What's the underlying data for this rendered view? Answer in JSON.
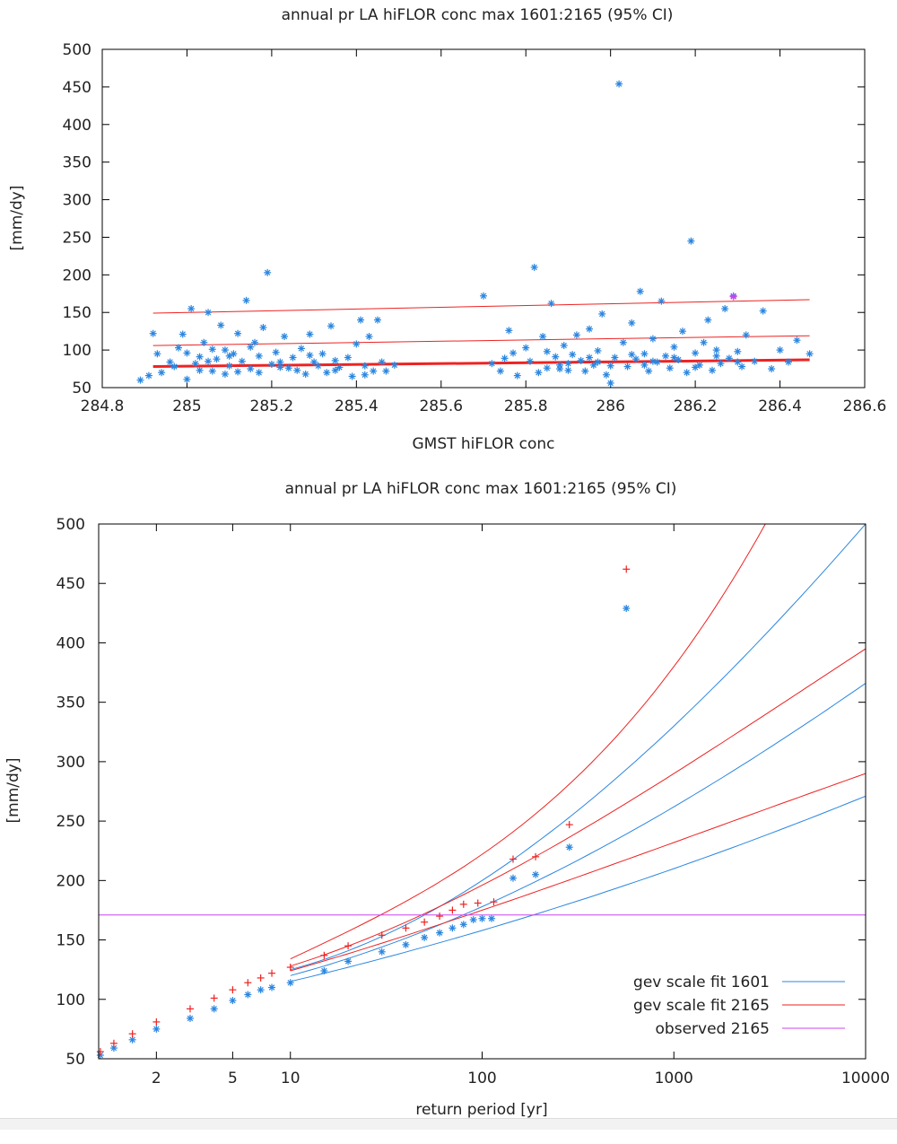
{
  "colors": {
    "blue": "#2a86e0",
    "red": "#ee2222",
    "magenta": "#cc44ee"
  },
  "chart_data": [
    {
      "type": "scatter",
      "title": "annual  pr LA hiFLOR conc max 1601:2165 (95% CI)",
      "xlabel": "GMST hiFLOR conc",
      "ylabel": "[mm/dy]",
      "xlim": [
        284.8,
        286.6
      ],
      "ylim": [
        50,
        500
      ],
      "xticks": [
        "284.8",
        "285",
        "285.2",
        "285.4",
        "285.6",
        "285.8",
        "286",
        "286.2",
        "286.4",
        "286.6"
      ],
      "yticks": [
        "50",
        "100",
        "150",
        "200",
        "250",
        "300",
        "350",
        "400",
        "450",
        "500"
      ],
      "grid": false,
      "series": [
        {
          "marker": "asterisk",
          "points": [
            [
              284.89,
              60
            ],
            [
              284.91,
              66
            ],
            [
              284.92,
              122
            ],
            [
              284.93,
              95
            ],
            [
              284.94,
              70
            ],
            [
              284.96,
              84
            ],
            [
              284.97,
              78
            ],
            [
              284.98,
              103
            ],
            [
              284.99,
              121
            ],
            [
              285.0,
              96
            ],
            [
              285.01,
              155
            ],
            [
              285.02,
              82
            ],
            [
              285.03,
              91
            ],
            [
              285.04,
              110
            ],
            [
              285.05,
              150
            ],
            [
              285.06,
              72
            ],
            [
              285.07,
              88
            ],
            [
              285.08,
              133
            ],
            [
              285.09,
              100
            ],
            [
              285.1,
              79
            ],
            [
              285.11,
              95
            ],
            [
              285.12,
              122
            ],
            [
              285.13,
              85
            ],
            [
              285.14,
              166
            ],
            [
              285.15,
              75
            ],
            [
              285.16,
              110
            ],
            [
              285.17,
              92
            ],
            [
              285.18,
              130
            ],
            [
              285.19,
              203
            ],
            [
              285.2,
              81
            ],
            [
              285.21,
              97
            ],
            [
              285.22,
              84
            ],
            [
              285.23,
              118
            ],
            [
              285.24,
              76
            ],
            [
              285.25,
              90
            ],
            [
              285.26,
              73
            ],
            [
              285.27,
              102
            ],
            [
              285.28,
              68
            ],
            [
              285.29,
              121
            ],
            [
              285.3,
              84
            ],
            [
              285.31,
              79
            ],
            [
              285.32,
              95
            ],
            [
              285.33,
              70
            ],
            [
              285.34,
              132
            ],
            [
              285.35,
              86
            ],
            [
              285.36,
              77
            ],
            [
              285.38,
              90
            ],
            [
              285.39,
              65
            ],
            [
              285.4,
              108
            ],
            [
              285.41,
              140
            ],
            [
              285.42,
              79
            ],
            [
              285.43,
              118
            ],
            [
              285.44,
              72
            ],
            [
              285.45,
              140
            ],
            [
              285.46,
              84
            ],
            [
              285.47,
              72
            ],
            [
              285.49,
              80
            ],
            [
              285.0,
              61
            ],
            [
              285.03,
              73
            ],
            [
              285.06,
              101
            ],
            [
              285.09,
              68
            ],
            [
              285.12,
              71
            ],
            [
              285.15,
              104
            ],
            [
              285.05,
              85
            ],
            [
              285.1,
              92
            ],
            [
              285.17,
              70
            ],
            [
              285.22,
              77
            ],
            [
              285.29,
              93
            ],
            [
              285.35,
              73
            ],
            [
              285.42,
              67
            ],
            [
              285.7,
              172
            ],
            [
              285.72,
              82
            ],
            [
              285.74,
              72
            ],
            [
              285.75,
              89
            ],
            [
              285.76,
              126
            ],
            [
              285.77,
              96
            ],
            [
              285.78,
              66
            ],
            [
              285.8,
              103
            ],
            [
              285.81,
              85
            ],
            [
              285.82,
              210
            ],
            [
              285.83,
              70
            ],
            [
              285.84,
              118
            ],
            [
              285.85,
              76
            ],
            [
              285.86,
              162
            ],
            [
              285.87,
              91
            ],
            [
              285.88,
              80
            ],
            [
              285.89,
              106
            ],
            [
              285.9,
              73
            ],
            [
              285.91,
              94
            ],
            [
              285.92,
              120
            ],
            [
              285.93,
              86
            ],
            [
              285.94,
              72
            ],
            [
              285.95,
              128
            ],
            [
              285.96,
              80
            ],
            [
              285.97,
              99
            ],
            [
              285.98,
              148
            ],
            [
              285.99,
              67
            ],
            [
              286.0,
              56
            ],
            [
              286.01,
              90
            ],
            [
              286.02,
              454
            ],
            [
              286.03,
              110
            ],
            [
              286.04,
              78
            ],
            [
              286.05,
              136
            ],
            [
              286.06,
              88
            ],
            [
              286.07,
              178
            ],
            [
              286.08,
              95
            ],
            [
              286.09,
              72
            ],
            [
              286.1,
              115
            ],
            [
              286.11,
              84
            ],
            [
              286.12,
              165
            ],
            [
              286.13,
              92
            ],
            [
              286.14,
              76
            ],
            [
              286.15,
              104
            ],
            [
              286.16,
              87
            ],
            [
              286.17,
              125
            ],
            [
              286.18,
              70
            ],
            [
              286.19,
              245
            ],
            [
              286.2,
              96
            ],
            [
              286.21,
              80
            ],
            [
              286.22,
              110
            ],
            [
              286.23,
              140
            ],
            [
              286.24,
              73
            ],
            [
              286.25,
              92
            ],
            [
              286.26,
              82
            ],
            [
              286.27,
              155
            ],
            [
              286.28,
              89
            ],
            [
              286.29,
              172
            ],
            [
              286.3,
              98
            ],
            [
              286.31,
              78
            ],
            [
              286.32,
              120
            ],
            [
              286.34,
              85
            ],
            [
              286.36,
              152
            ],
            [
              286.38,
              75
            ],
            [
              286.4,
              100
            ],
            [
              286.42,
              84
            ],
            [
              286.44,
              113
            ],
            [
              286.47,
              95
            ],
            [
              285.85,
              98
            ],
            [
              285.9,
              82
            ],
            [
              285.95,
              90
            ],
            [
              286.0,
              79
            ],
            [
              286.05,
              94
            ],
            [
              286.1,
              85
            ],
            [
              286.15,
              90
            ],
            [
              286.2,
              77
            ],
            [
              286.25,
              100
            ],
            [
              286.3,
              84
            ],
            [
              285.88,
              75
            ],
            [
              285.97,
              84
            ],
            [
              286.08,
              80
            ]
          ]
        },
        {
          "marker": "asterisk",
          "color": "magenta",
          "points": [
            [
              286.29,
              171
            ]
          ]
        },
        {
          "type": "line",
          "points": [
            [
              284.92,
              78
            ],
            [
              286.47,
              87
            ]
          ]
        },
        {
          "type": "line",
          "points": [
            [
              284.92,
              106
            ],
            [
              286.47,
              119
            ]
          ]
        },
        {
          "type": "line",
          "points": [
            [
              284.92,
              149
            ],
            [
              286.47,
              167
            ]
          ]
        }
      ]
    },
    {
      "type": "line",
      "title": "annual  pr LA hiFLOR conc max 1601:2165 (95% CI)",
      "xlabel": "return period [yr]",
      "ylabel": "[mm/dy]",
      "xscale": "log",
      "xlim": [
        1,
        10000
      ],
      "ylim": [
        50,
        500
      ],
      "xticks": [
        "2",
        "5",
        "10",
        "100",
        "1000",
        "10000"
      ],
      "yticks": [
        "50",
        "100",
        "150",
        "200",
        "250",
        "300",
        "350",
        "400",
        "450",
        "500"
      ],
      "grid": false,
      "legend_position": "bottom-right",
      "legend": [
        {
          "label": "gev scale fit 1601",
          "color": "blue"
        },
        {
          "label": "gev scale fit 2165",
          "color": "red"
        },
        {
          "label": "observed 2165",
          "color": "magenta"
        }
      ],
      "series": [
        {
          "color": "blue",
          "points": [
            [
              10,
              125
            ],
            [
              100,
              200
            ],
            [
              1000,
              330
            ],
            [
              10000,
              500
            ]
          ]
        },
        {
          "color": "blue",
          "points": [
            [
              10,
              120
            ],
            [
              100,
              178
            ],
            [
              1000,
              262
            ],
            [
              10000,
              366
            ]
          ]
        },
        {
          "color": "blue",
          "points": [
            [
              10,
              115
            ],
            [
              100,
              158
            ],
            [
              1000,
              210
            ],
            [
              10000,
              271
            ]
          ]
        },
        {
          "color": "red",
          "points": [
            [
              10,
              134
            ],
            [
              100,
              222
            ],
            [
              1000,
              380
            ],
            [
              3000,
              500
            ]
          ]
        },
        {
          "color": "red",
          "points": [
            [
              10,
              128
            ],
            [
              100,
              196
            ],
            [
              1000,
              290
            ],
            [
              10000,
              395
            ]
          ]
        },
        {
          "color": "red",
          "points": [
            [
              10,
              124
            ],
            [
              100,
              175
            ],
            [
              1000,
              232
            ],
            [
              10000,
              290
            ]
          ]
        },
        {
          "color": "magenta",
          "points": [
            [
              1,
              171
            ],
            [
              10000,
              171
            ]
          ]
        },
        {
          "color": "blue",
          "marker": "asterisk",
          "points": [
            [
              1.02,
              53
            ],
            [
              1.2,
              59
            ],
            [
              1.5,
              66
            ],
            [
              2,
              75
            ],
            [
              3,
              84
            ],
            [
              4,
              92
            ],
            [
              5,
              99
            ],
            [
              6,
              104
            ],
            [
              7,
              108
            ],
            [
              8,
              110
            ],
            [
              10,
              114
            ],
            [
              15,
              124
            ],
            [
              20,
              132
            ],
            [
              30,
              140
            ],
            [
              40,
              146
            ],
            [
              50,
              152
            ],
            [
              60,
              156
            ],
            [
              70,
              160
            ],
            [
              80,
              163
            ],
            [
              90,
              167
            ],
            [
              100,
              168
            ],
            [
              112,
              168
            ],
            [
              145,
              202
            ],
            [
              190,
              205
            ],
            [
              285,
              228
            ],
            [
              565,
              429
            ]
          ]
        },
        {
          "color": "red",
          "marker": "plus",
          "points": [
            [
              1.02,
              56
            ],
            [
              1.2,
              63
            ],
            [
              1.5,
              71
            ],
            [
              2,
              81
            ],
            [
              3,
              92
            ],
            [
              4,
              101
            ],
            [
              5,
              108
            ],
            [
              6,
              114
            ],
            [
              7,
              118
            ],
            [
              8,
              122
            ],
            [
              10,
              127
            ],
            [
              15,
              137
            ],
            [
              20,
              145
            ],
            [
              30,
              154
            ],
            [
              40,
              160
            ],
            [
              50,
              165
            ],
            [
              60,
              170
            ],
            [
              70,
              175
            ],
            [
              80,
              180
            ],
            [
              95,
              181
            ],
            [
              115,
              182
            ],
            [
              145,
              218
            ],
            [
              190,
              220
            ],
            [
              285,
              247
            ],
            [
              565,
              462
            ]
          ]
        }
      ]
    }
  ]
}
